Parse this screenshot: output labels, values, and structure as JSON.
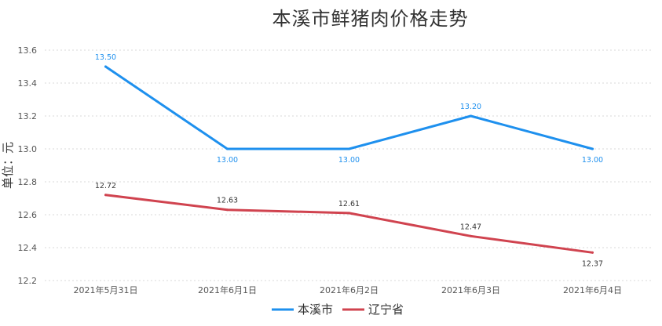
{
  "chart_data": {
    "type": "line",
    "title": "本溪市鲜猪肉价格走势",
    "ylabel": "单位：元",
    "xlabel": "",
    "categories": [
      "2021年5月31日",
      "2021年6月1日",
      "2021年6月2日",
      "2021年6月3日",
      "2021年6月4日"
    ],
    "ylim": [
      12.2,
      13.6
    ],
    "yticks": [
      "12.2",
      "12.4",
      "12.6",
      "12.8",
      "13.0",
      "13.2",
      "13.4",
      "13.6"
    ],
    "grid": true,
    "legend_position": "bottom",
    "series": [
      {
        "name": "本溪市",
        "color": "#1e90ee",
        "values": [
          13.5,
          13.0,
          13.0,
          13.2,
          13.0
        ],
        "labels": [
          "13.50",
          "13.00",
          "13.00",
          "13.20",
          "13.00"
        ]
      },
      {
        "name": "辽宁省",
        "color": "#d0434f",
        "values": [
          12.72,
          12.63,
          12.61,
          12.47,
          12.37
        ],
        "labels": [
          "12.72",
          "12.63",
          "12.61",
          "12.47",
          "12.37"
        ]
      }
    ]
  }
}
